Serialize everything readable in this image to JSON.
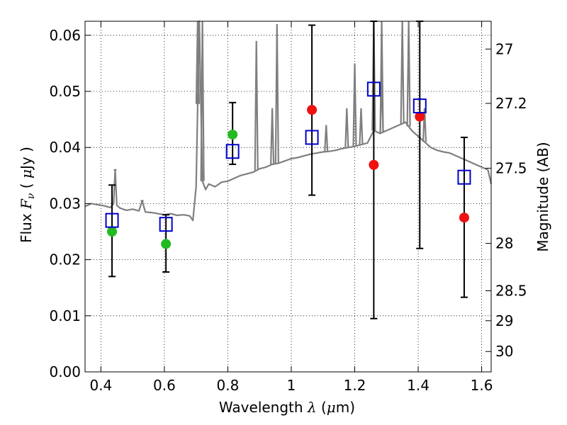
{
  "chart_data": {
    "type": "scatter",
    "xlabel_parts": [
      "Wavelength  ",
      "λ",
      " (",
      "μ",
      "m)"
    ],
    "ylabel_parts": [
      "Flux  ",
      "F",
      "ν",
      "  ( ",
      "μ",
      "Jy )"
    ],
    "ylabel_right": "Magnitude (AB)",
    "xlim": [
      0.35,
      1.63
    ],
    "ylim": [
      0.0,
      0.0625
    ],
    "grid": true,
    "x_ticks": [
      0.4,
      0.6,
      0.8,
      1.0,
      1.2,
      1.4,
      1.6
    ],
    "x_tick_labels": [
      "0.4",
      "0.6",
      "0.8",
      "1",
      "1.2",
      "1.4",
      "1.6"
    ],
    "y_ticks": [
      0.0,
      0.01,
      0.02,
      0.03,
      0.04,
      0.05,
      0.06
    ],
    "y_tick_labels": [
      "0.00",
      "0.01",
      "0.02",
      "0.03",
      "0.04",
      "0.05",
      "0.06"
    ],
    "right_ticks": [
      {
        "label": "27",
        "mag": 27.0
      },
      {
        "label": "27.2",
        "mag": 27.2
      },
      {
        "label": "27.5",
        "mag": 27.5
      },
      {
        "label": "28",
        "mag": 28.0
      },
      {
        "label": "28.5",
        "mag": 28.5
      },
      {
        "label": "29",
        "mag": 29.0
      },
      {
        "label": "30",
        "mag": 30.0
      }
    ],
    "colors": {
      "model": "#7f7f7f",
      "green": "#22bb22",
      "red": "#ee1111",
      "square": "#0000cc",
      "errorbar": "#000000"
    },
    "model_spectrum": {
      "x": [
        0.35,
        0.37,
        0.39,
        0.41,
        0.43,
        0.44,
        0.445,
        0.45,
        0.46,
        0.48,
        0.5,
        0.52,
        0.53,
        0.54,
        0.56,
        0.58,
        0.6,
        0.62,
        0.64,
        0.66,
        0.68,
        0.69,
        0.7,
        0.71,
        0.72,
        0.73,
        0.74,
        0.76,
        0.78,
        0.8,
        0.82,
        0.84,
        0.86,
        0.88,
        0.9,
        0.92,
        0.94,
        0.96,
        0.98,
        1.0,
        1.02,
        1.04,
        1.06,
        1.08,
        1.1,
        1.12,
        1.14,
        1.16,
        1.18,
        1.2,
        1.22,
        1.24,
        1.26,
        1.28,
        1.3,
        1.32,
        1.34,
        1.36,
        1.38,
        1.4,
        1.42,
        1.44,
        1.46,
        1.48,
        1.5,
        1.52,
        1.54,
        1.56,
        1.58,
        1.6,
        1.62,
        1.63
      ],
      "y": [
        0.0295,
        0.03,
        0.0298,
        0.0296,
        0.0293,
        0.03,
        0.036,
        0.0297,
        0.0292,
        0.0288,
        0.029,
        0.0287,
        0.0305,
        0.0285,
        0.0284,
        0.0282,
        0.028,
        0.0282,
        0.0279,
        0.028,
        0.0278,
        0.027,
        0.033,
        0.0625,
        0.034,
        0.0325,
        0.0335,
        0.033,
        0.0338,
        0.034,
        0.0345,
        0.035,
        0.0353,
        0.0356,
        0.0362,
        0.0365,
        0.037,
        0.0372,
        0.0376,
        0.038,
        0.0382,
        0.0385,
        0.0388,
        0.039,
        0.0392,
        0.0393,
        0.0395,
        0.0398,
        0.04,
        0.0402,
        0.0405,
        0.0408,
        0.043,
        0.0425,
        0.043,
        0.0435,
        0.044,
        0.0445,
        0.043,
        0.042,
        0.041,
        0.04,
        0.0395,
        0.0392,
        0.039,
        0.0385,
        0.038,
        0.0375,
        0.037,
        0.0365,
        0.036,
        0.0335
      ]
    },
    "emission_lines": [
      {
        "x": 0.445,
        "top": 0.036
      },
      {
        "x": 0.53,
        "top": 0.0305
      },
      {
        "x": 0.705,
        "top": 0.0625
      },
      {
        "x": 0.72,
        "top": 0.0625
      },
      {
        "x": 0.89,
        "top": 0.059
      },
      {
        "x": 0.955,
        "top": 0.062
      },
      {
        "x": 0.94,
        "top": 0.047
      },
      {
        "x": 1.11,
        "top": 0.044
      },
      {
        "x": 1.175,
        "top": 0.047
      },
      {
        "x": 1.2,
        "top": 0.055
      },
      {
        "x": 1.22,
        "top": 0.047
      },
      {
        "x": 1.26,
        "top": 0.0625
      },
      {
        "x": 1.285,
        "top": 0.0625
      },
      {
        "x": 1.35,
        "top": 0.0625
      },
      {
        "x": 1.37,
        "top": 0.0625
      },
      {
        "x": 1.285,
        "top": 0.0525
      },
      {
        "x": 1.42,
        "top": 0.047
      }
    ],
    "series": [
      {
        "marker": "square",
        "x": [
          0.435,
          0.605,
          0.815,
          1.065,
          1.26,
          1.405,
          1.545
        ],
        "y": [
          0.027,
          0.0263,
          0.0393,
          0.0418,
          0.0504,
          0.0474,
          0.0347
        ]
      },
      {
        "marker": "circle-green",
        "x": [
          0.435,
          0.605,
          0.815
        ],
        "y": [
          0.025,
          0.0228,
          0.0423
        ]
      },
      {
        "marker": "circle-red",
        "x": [
          1.065,
          1.26,
          1.405,
          1.545
        ],
        "y": [
          0.0467,
          0.0369,
          0.0455,
          0.0275
        ]
      },
      {
        "marker": "errorbar",
        "x": [
          0.435,
          0.605,
          0.815,
          1.065,
          1.26,
          1.405,
          1.545
        ],
        "ylow": [
          0.017,
          0.0178,
          0.037,
          0.0315,
          0.0095,
          0.022,
          0.0133
        ],
        "yhigh": [
          0.0333,
          0.028,
          0.048,
          0.0618,
          0.063,
          0.063,
          0.0418
        ]
      }
    ]
  }
}
